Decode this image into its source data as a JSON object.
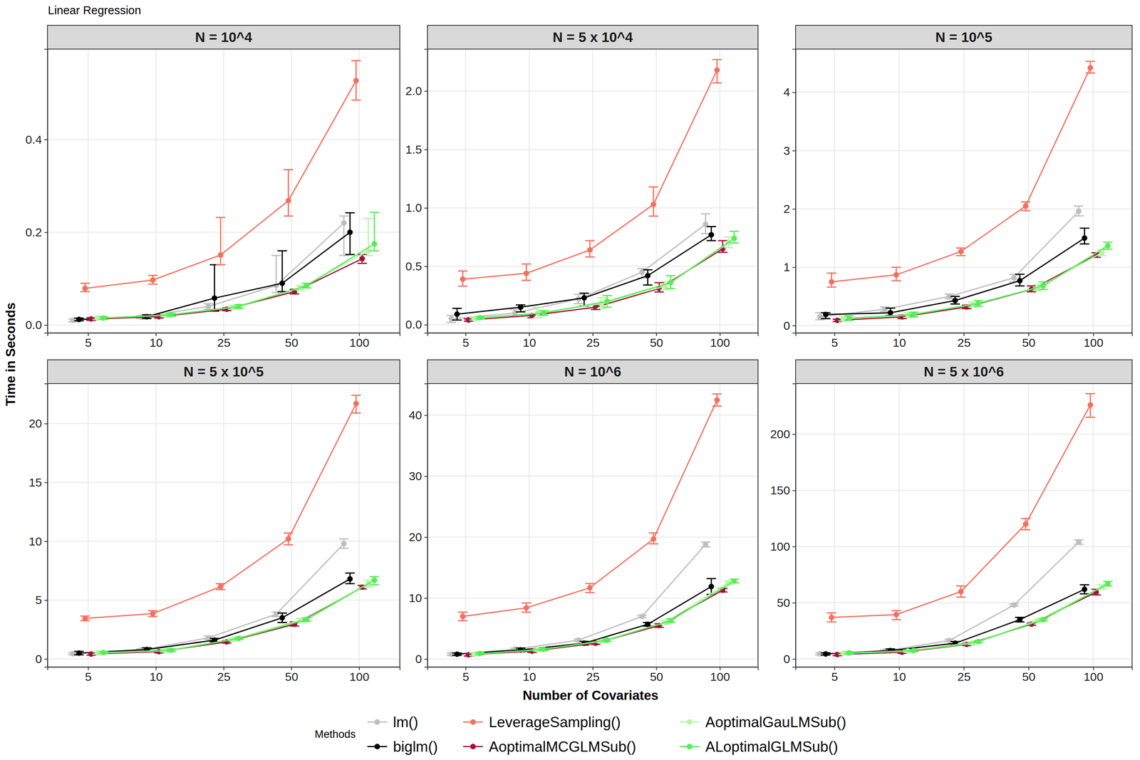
{
  "title": "Linear Regression",
  "x_label": "Number of Covariates",
  "y_label": "Time in Seconds",
  "legend_title": "Methods",
  "legend": "bottom",
  "chart_data": [
    {
      "type": "line",
      "title": "N = 10^4",
      "marker": "circle",
      "grid": true,
      "categories": [
        "5",
        "10",
        "25",
        "50",
        "100"
      ],
      "ylim": [
        -0.017,
        0.595
      ],
      "yticks": [
        {
          "value": 0,
          "label": "0.0"
        },
        {
          "value": 0.2,
          "label": "0.2"
        },
        {
          "value": 0.4,
          "label": "0.4"
        }
      ],
      "series": [
        {
          "name": "lm()",
          "color": "#BEBEBE",
          "values": [
            0.01,
            0.017,
            0.04,
            0.085,
            0.22
          ],
          "error_low": [
            0.007,
            0.014,
            0.034,
            0.07,
            0.15
          ],
          "error_high": [
            0.013,
            0.02,
            0.046,
            0.15,
            0.235
          ]
        },
        {
          "name": "biglm()",
          "color": "#000000",
          "values": [
            0.012,
            0.018,
            0.058,
            0.09,
            0.2
          ],
          "error_low": [
            0.009,
            0.014,
            0.03,
            0.072,
            0.152
          ],
          "error_high": [
            0.015,
            0.022,
            0.13,
            0.16,
            0.242
          ]
        },
        {
          "name": "LeverageSampling()",
          "color": "#F4705F",
          "values": [
            0.079,
            0.097,
            0.151,
            0.268,
            0.527
          ],
          "error_low": [
            0.072,
            0.088,
            0.13,
            0.235,
            0.485
          ],
          "error_high": [
            0.09,
            0.107,
            0.232,
            0.335,
            0.57
          ]
        },
        {
          "name": "AoptimalMCGLMSub()",
          "color": "#A3123A",
          "values": [
            0.013,
            0.018,
            0.034,
            0.072,
            0.143
          ],
          "error_low": [
            0.01,
            0.015,
            0.031,
            0.067,
            0.133
          ],
          "error_high": [
            0.016,
            0.021,
            0.037,
            0.077,
            0.152
          ]
        },
        {
          "name": "AoptimalGauLMSub()",
          "color": "#B5F5A5",
          "values": [
            0.015,
            0.021,
            0.038,
            0.08,
            0.16
          ],
          "error_low": [
            0.012,
            0.018,
            0.034,
            0.075,
            0.15
          ],
          "error_high": [
            0.018,
            0.024,
            0.042,
            0.085,
            0.23
          ]
        },
        {
          "name": "ALoptimalGLMSub()",
          "color": "#55EE55",
          "values": [
            0.015,
            0.022,
            0.04,
            0.085,
            0.175
          ],
          "error_low": [
            0.012,
            0.019,
            0.036,
            0.08,
            0.16
          ],
          "error_high": [
            0.018,
            0.025,
            0.044,
            0.09,
            0.243
          ]
        }
      ]
    },
    {
      "type": "line",
      "title": "N = 5 x 10^4",
      "marker": "circle",
      "grid": true,
      "categories": [
        "5",
        "10",
        "25",
        "50",
        "100"
      ],
      "ylim": [
        -0.07,
        2.36
      ],
      "yticks": [
        {
          "value": 0,
          "label": "0.0"
        },
        0.5,
        {
          "value": 1,
          "label": "1.0"
        },
        1.5,
        {
          "value": 2,
          "label": "2.0"
        }
      ],
      "series": [
        {
          "name": "lm()",
          "color": "#BEBEBE",
          "values": [
            0.05,
            0.1,
            0.22,
            0.45,
            0.86
          ],
          "error_low": [
            0.02,
            0.07,
            0.18,
            0.4,
            0.78
          ],
          "error_high": [
            0.08,
            0.13,
            0.26,
            0.48,
            0.95
          ]
        },
        {
          "name": "biglm()",
          "color": "#000000",
          "values": [
            0.09,
            0.15,
            0.23,
            0.42,
            0.77
          ],
          "error_low": [
            0.04,
            0.11,
            0.16,
            0.34,
            0.72
          ],
          "error_high": [
            0.14,
            0.17,
            0.27,
            0.47,
            0.84
          ]
        },
        {
          "name": "LeverageSampling()",
          "color": "#F4705F",
          "values": [
            0.39,
            0.44,
            0.64,
            1.03,
            2.18
          ],
          "error_low": [
            0.33,
            0.38,
            0.58,
            0.93,
            2.07
          ],
          "error_high": [
            0.46,
            0.52,
            0.72,
            1.18,
            2.27
          ]
        },
        {
          "name": "AoptimalMCGLMSub()",
          "color": "#A3123A",
          "values": [
            0.04,
            0.08,
            0.15,
            0.31,
            0.65
          ],
          "error_low": [
            0.03,
            0.06,
            0.13,
            0.28,
            0.62
          ],
          "error_high": [
            0.05,
            0.09,
            0.17,
            0.36,
            0.72
          ]
        },
        {
          "name": "AoptimalGauLMSub()",
          "color": "#B5F5A5",
          "values": [
            0.05,
            0.1,
            0.18,
            0.33,
            0.7
          ],
          "error_low": [
            0.04,
            0.06,
            0.14,
            0.3,
            0.66
          ],
          "error_high": [
            0.06,
            0.15,
            0.23,
            0.37,
            0.75
          ]
        },
        {
          "name": "ALoptimalGLMSub()",
          "color": "#55EE55",
          "values": [
            0.06,
            0.1,
            0.2,
            0.36,
            0.74
          ],
          "error_low": [
            0.05,
            0.08,
            0.15,
            0.31,
            0.7
          ],
          "error_high": [
            0.07,
            0.12,
            0.25,
            0.42,
            0.8
          ]
        }
      ]
    },
    {
      "type": "line",
      "title": "N = 10^5",
      "marker": "circle",
      "grid": true,
      "categories": [
        "5",
        "10",
        "25",
        "50",
        "100"
      ],
      "ylim": [
        -0.125,
        4.74
      ],
      "yticks": [
        0,
        1,
        2,
        3,
        4
      ],
      "series": [
        {
          "name": "lm()",
          "color": "#BEBEBE",
          "values": [
            0.15,
            0.28,
            0.5,
            0.82,
            1.96
          ],
          "error_low": [
            0.1,
            0.24,
            0.46,
            0.75,
            1.88
          ],
          "error_high": [
            0.22,
            0.32,
            0.54,
            0.88,
            2.05
          ]
        },
        {
          "name": "biglm()",
          "color": "#000000",
          "values": [
            0.19,
            0.22,
            0.43,
            0.77,
            1.5
          ],
          "error_low": [
            0.12,
            0.17,
            0.37,
            0.68,
            1.4
          ],
          "error_high": [
            0.22,
            0.3,
            0.5,
            0.88,
            1.67
          ]
        },
        {
          "name": "LeverageSampling()",
          "color": "#F4705F",
          "values": [
            0.75,
            0.87,
            1.27,
            2.05,
            4.42
          ],
          "error_low": [
            0.66,
            0.77,
            1.2,
            1.97,
            4.33
          ],
          "error_high": [
            0.9,
            1.0,
            1.33,
            2.12,
            4.53
          ]
        },
        {
          "name": "AoptimalMCGLMSub()",
          "color": "#A3123A",
          "values": [
            0.09,
            0.15,
            0.32,
            0.62,
            1.21
          ],
          "error_low": [
            0.07,
            0.12,
            0.29,
            0.58,
            1.17
          ],
          "error_high": [
            0.11,
            0.18,
            0.35,
            0.68,
            1.25
          ]
        },
        {
          "name": "AoptimalGauLMSub()",
          "color": "#B5F5A5",
          "values": [
            0.12,
            0.18,
            0.36,
            0.65,
            1.25
          ],
          "error_low": [
            0.08,
            0.14,
            0.32,
            0.6,
            1.2
          ],
          "error_high": [
            0.16,
            0.22,
            0.4,
            0.7,
            1.3
          ]
        },
        {
          "name": "ALoptimalGLMSub()",
          "color": "#55EE55",
          "values": [
            0.13,
            0.19,
            0.38,
            0.68,
            1.37
          ],
          "error_low": [
            0.09,
            0.15,
            0.33,
            0.62,
            1.31
          ],
          "error_high": [
            0.17,
            0.23,
            0.43,
            0.75,
            1.43
          ]
        }
      ]
    },
    {
      "type": "line",
      "title": "N = 5 x 10^5",
      "marker": "circle",
      "grid": true,
      "categories": [
        "5",
        "10",
        "25",
        "50",
        "100"
      ],
      "ylim": [
        -0.68,
        23.4
      ],
      "yticks": [
        0,
        5,
        10,
        15,
        20
      ],
      "series": [
        {
          "name": "lm()",
          "color": "#BEBEBE",
          "values": [
            0.45,
            0.75,
            1.8,
            3.8,
            9.8
          ],
          "error_low": [
            0.35,
            0.65,
            1.65,
            3.6,
            9.4
          ],
          "error_high": [
            0.55,
            0.85,
            1.95,
            4.0,
            10.2
          ]
        },
        {
          "name": "biglm()",
          "color": "#000000",
          "values": [
            0.5,
            0.8,
            1.6,
            3.5,
            6.8
          ],
          "error_low": [
            0.35,
            0.65,
            1.45,
            3.1,
            6.4
          ],
          "error_high": [
            0.65,
            0.95,
            1.75,
            3.9,
            7.3
          ]
        },
        {
          "name": "LeverageSampling()",
          "color": "#F4705F",
          "values": [
            3.45,
            3.85,
            6.15,
            10.2,
            21.7
          ],
          "error_low": [
            3.25,
            3.6,
            5.9,
            9.7,
            20.9
          ],
          "error_high": [
            3.65,
            4.1,
            6.4,
            10.7,
            22.4
          ]
        },
        {
          "name": "AoptimalMCGLMSub()",
          "color": "#A3123A",
          "values": [
            0.42,
            0.62,
            1.45,
            2.95,
            6.1
          ],
          "error_low": [
            0.32,
            0.52,
            1.35,
            2.8,
            5.95
          ],
          "error_high": [
            0.52,
            0.72,
            1.55,
            3.15,
            6.25
          ]
        },
        {
          "name": "AoptimalGauLMSub()",
          "color": "#B5F5A5",
          "values": [
            0.5,
            0.7,
            1.65,
            3.3,
            6.4
          ],
          "error_low": [
            0.4,
            0.6,
            1.55,
            3.15,
            6.1
          ],
          "error_high": [
            0.6,
            0.8,
            1.75,
            3.45,
            6.7
          ]
        },
        {
          "name": "ALoptimalGLMSub()",
          "color": "#55EE55",
          "values": [
            0.55,
            0.75,
            1.75,
            3.35,
            6.7
          ],
          "error_low": [
            0.45,
            0.65,
            1.65,
            3.2,
            6.3
          ],
          "error_high": [
            0.65,
            0.85,
            1.85,
            3.5,
            7.0
          ]
        }
      ]
    },
    {
      "type": "line",
      "title": "N = 10^6",
      "marker": "circle",
      "grid": true,
      "categories": [
        "5",
        "10",
        "25",
        "50",
        "100"
      ],
      "ylim": [
        -1.3,
        45.2
      ],
      "yticks": [
        0,
        10,
        20,
        30,
        40
      ],
      "series": [
        {
          "name": "lm()",
          "color": "#BEBEBE",
          "values": [
            0.8,
            1.6,
            3.1,
            7.0,
            18.8
          ],
          "error_low": [
            0.6,
            1.4,
            2.9,
            6.8,
            18.4
          ],
          "error_high": [
            1.0,
            1.8,
            3.3,
            7.2,
            19.2
          ]
        },
        {
          "name": "biglm()",
          "color": "#000000",
          "values": [
            0.8,
            1.5,
            2.6,
            5.7,
            11.9
          ],
          "error_low": [
            0.6,
            1.2,
            2.3,
            5.4,
            10.6
          ],
          "error_high": [
            1.0,
            1.8,
            2.9,
            6.0,
            13.2
          ]
        },
        {
          "name": "LeverageSampling()",
          "color": "#F4705F",
          "values": [
            7.0,
            8.4,
            11.7,
            19.7,
            42.5
          ],
          "error_low": [
            6.3,
            7.7,
            10.9,
            18.9,
            41.5
          ],
          "error_high": [
            7.7,
            9.2,
            12.4,
            20.7,
            43.5
          ]
        },
        {
          "name": "AoptimalMCGLMSub()",
          "color": "#A3123A",
          "values": [
            0.7,
            1.3,
            2.6,
            5.5,
            11.3
          ],
          "error_low": [
            0.5,
            1.1,
            2.4,
            5.2,
            11.0
          ],
          "error_high": [
            0.9,
            1.5,
            2.8,
            5.8,
            11.6
          ]
        },
        {
          "name": "AoptimalGauLMSub()",
          "color": "#B5F5A5",
          "values": [
            0.8,
            1.5,
            2.9,
            6.0,
            12.5
          ],
          "error_low": [
            0.6,
            1.3,
            2.7,
            5.7,
            12.2
          ],
          "error_high": [
            1.0,
            1.7,
            3.1,
            6.3,
            12.8
          ]
        },
        {
          "name": "ALoptimalGLMSub()",
          "color": "#55EE55",
          "values": [
            0.9,
            1.6,
            3.1,
            6.3,
            12.8
          ],
          "error_low": [
            0.7,
            1.4,
            2.9,
            6.0,
            12.5
          ],
          "error_high": [
            1.1,
            1.8,
            3.3,
            6.6,
            13.1
          ]
        }
      ]
    },
    {
      "type": "line",
      "title": "N = 5 x 10^6",
      "marker": "circle",
      "grid": true,
      "categories": [
        "5",
        "10",
        "25",
        "50",
        "100"
      ],
      "ylim": [
        -7.1,
        245
      ],
      "yticks": [
        0,
        50,
        100,
        150,
        200
      ],
      "series": [
        {
          "name": "lm()",
          "color": "#BEBEBE",
          "values": [
            4.5,
            7.0,
            16.5,
            48,
            104
          ],
          "error_low": [
            3.5,
            6.0,
            15.5,
            47,
            102
          ],
          "error_high": [
            5.5,
            8.0,
            17.5,
            49,
            106
          ]
        },
        {
          "name": "biglm()",
          "color": "#000000",
          "values": [
            4.5,
            7.5,
            14,
            35,
            62
          ],
          "error_low": [
            3.5,
            6.0,
            12.5,
            33,
            58
          ],
          "error_high": [
            5.5,
            9.0,
            15.5,
            37,
            66
          ]
        },
        {
          "name": "LeverageSampling()",
          "color": "#F4705F",
          "values": [
            37,
            39.5,
            60,
            120,
            226
          ],
          "error_low": [
            33,
            35,
            55,
            115,
            215
          ],
          "error_high": [
            41,
            43,
            65,
            125,
            236
          ]
        },
        {
          "name": "AoptimalMCGLMSub()",
          "color": "#A3123A",
          "values": [
            4,
            6,
            13,
            31,
            59.5
          ],
          "error_low": [
            3,
            5,
            12,
            30,
            57
          ],
          "error_high": [
            5,
            7,
            14,
            32,
            62
          ]
        },
        {
          "name": "AoptimalGauLMSub()",
          "color": "#B5F5A5",
          "values": [
            5,
            7,
            14,
            34,
            64
          ],
          "error_low": [
            4,
            6,
            13,
            33,
            62
          ],
          "error_high": [
            6,
            8,
            15,
            35,
            66
          ]
        },
        {
          "name": "ALoptimalGLMSub()",
          "color": "#55EE55",
          "values": [
            5.5,
            7.5,
            15.5,
            35,
            67
          ],
          "error_low": [
            4.5,
            6.5,
            14.5,
            34,
            65
          ],
          "error_high": [
            6.5,
            8.5,
            16.5,
            36,
            69
          ]
        }
      ]
    }
  ]
}
